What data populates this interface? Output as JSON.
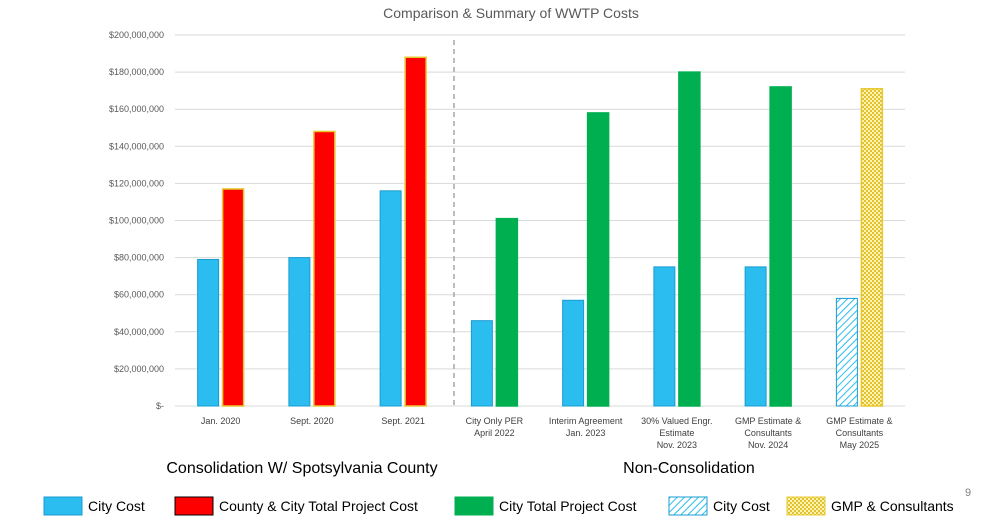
{
  "chart_data": {
    "type": "bar",
    "title": "Comparison & Summary of WWTP Costs",
    "ylim": [
      0,
      200000000
    ],
    "yticks": [
      "$-",
      "$20,000,000",
      "$40,000,000",
      "$60,000,000",
      "$80,000,000",
      "$100,000,000",
      "$120,000,000",
      "$140,000,000",
      "$160,000,000",
      "$180,000,000",
      "$200,000,000"
    ],
    "grid": true,
    "legend_position": "bottom",
    "categories": [
      [
        "Jan. 2020"
      ],
      [
        "Sept. 2020"
      ],
      [
        "Sept. 2021"
      ],
      [
        "City Only PER",
        "April 2022"
      ],
      [
        "Interim Agreement",
        "Jan. 2023"
      ],
      [
        "30% Valued Engr.",
        "Estimate",
        "Nov. 2023"
      ],
      [
        "GMP Estimate &",
        "Consultants",
        "Nov. 2024"
      ],
      [
        "GMP Estimate &",
        "Consultants",
        "May 2025"
      ]
    ],
    "bars": [
      {
        "city": 79000000,
        "total": 117000000,
        "city_style": "city",
        "total_style": "county"
      },
      {
        "city": 80000000,
        "total": 148000000,
        "city_style": "city",
        "total_style": "county"
      },
      {
        "city": 116000000,
        "total": 188000000,
        "city_style": "city",
        "total_style": "county"
      },
      {
        "city": 46000000,
        "total": 101000000,
        "city_style": "city",
        "total_style": "citytotal"
      },
      {
        "city": 57000000,
        "total": 158000000,
        "city_style": "city",
        "total_style": "citytotal"
      },
      {
        "city": 75000000,
        "total": 180000000,
        "city_style": "city",
        "total_style": "citytotal"
      },
      {
        "city": 75000000,
        "total": 172000000,
        "city_style": "city",
        "total_style": "citytotal"
      },
      {
        "city": 58000000,
        "total": 171000000,
        "city_style": "hatch",
        "total_style": "gmp"
      }
    ],
    "groups": [
      "Consolidation W/ Spotsylvania County",
      "Non-Consolidation"
    ],
    "legend": [
      {
        "label": "City Cost",
        "style": "city"
      },
      {
        "label": "County & City Total Project Cost",
        "style": "county"
      },
      {
        "label": "City Total Project Cost",
        "style": "citytotal"
      },
      {
        "label": "City Cost",
        "style": "hatch"
      },
      {
        "label": "GMP & Consultants",
        "style": "gmp"
      }
    ],
    "colors": {
      "city": "#2BBDEF",
      "county": "#FF0000",
      "citytotal": "#00B050",
      "hatch": "#2BBDEF",
      "gmp": "#F5D940"
    }
  },
  "page_number": "9"
}
